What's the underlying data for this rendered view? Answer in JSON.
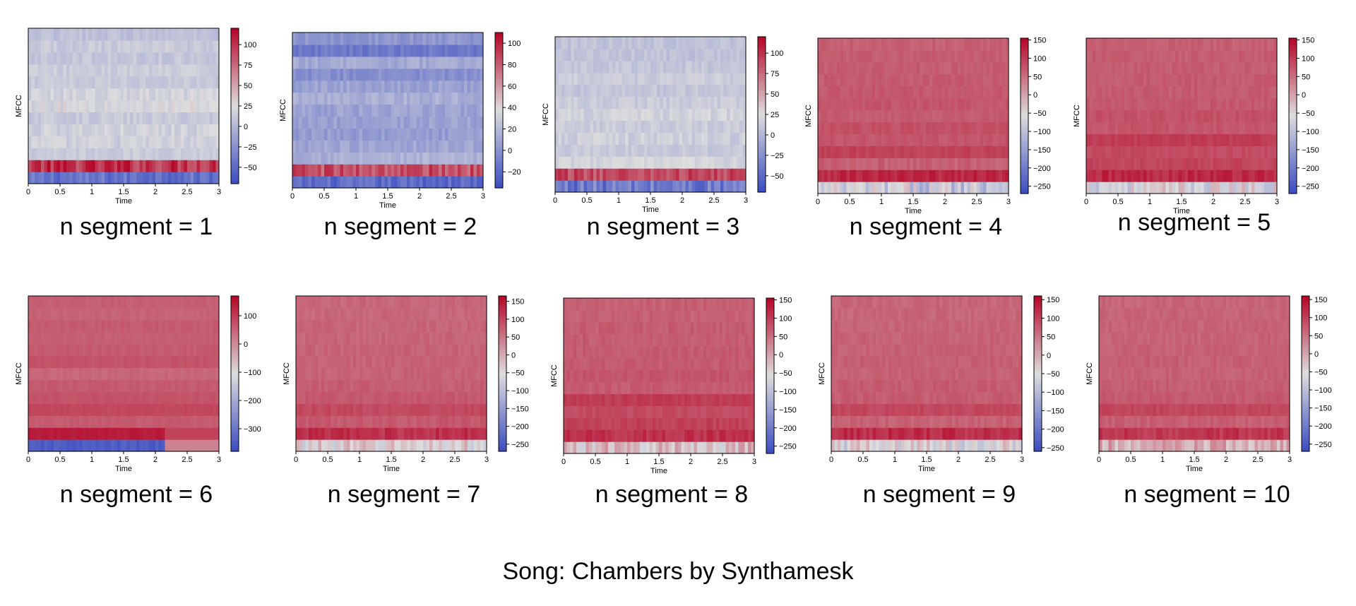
{
  "footer": {
    "text": "Song: Chambers by Synthamesk"
  },
  "colormap": {
    "low": "#3b4cc0",
    "mid": "#dddddd",
    "high": "#b40426"
  },
  "chart_data": [
    {
      "type": "heatmap",
      "caption": "n segment = 1",
      "xlabel": "Time",
      "ylabel": "MFCC",
      "xlim": [
        0,
        3
      ],
      "x_ticks": [
        "0",
        "0.5",
        "1",
        "1.5",
        "2",
        "2.5",
        "3"
      ],
      "n_coeffs": 13,
      "n_frames": 60,
      "clim": [
        -70,
        120
      ],
      "colorbar_ticks": [
        100,
        75,
        50,
        25,
        0,
        -25,
        -50
      ],
      "colorbar_labels": [
        "100",
        "75",
        "50",
        "25",
        "0",
        "−25",
        "−50"
      ],
      "profile": [
        -45,
        100,
        14,
        16,
        17,
        12,
        22,
        18,
        12,
        14,
        10,
        12,
        6
      ],
      "row_noise": [
        14,
        20,
        6,
        8,
        8,
        6,
        10,
        8,
        6,
        6,
        6,
        6,
        6
      ]
    },
    {
      "type": "heatmap",
      "caption": "n segment = 2",
      "xlabel": "Time",
      "ylabel": "MFCC",
      "xlim": [
        0,
        3
      ],
      "x_ticks": [
        "0",
        "0.5",
        "1",
        "1.5",
        "2",
        "2.5",
        "3"
      ],
      "n_coeffs": 13,
      "n_frames": 60,
      "clim": [
        -35,
        110
      ],
      "colorbar_ticks": [
        100,
        80,
        60,
        40,
        20,
        0,
        -20
      ],
      "colorbar_labels": [
        "100",
        "80",
        "60",
        "40",
        "20",
        "0",
        "−20"
      ],
      "profile": [
        -20,
        85,
        15,
        10,
        5,
        8,
        8,
        15,
        8,
        -2,
        12,
        -12,
        2
      ],
      "row_noise": [
        10,
        14,
        6,
        6,
        6,
        6,
        6,
        6,
        6,
        6,
        6,
        6,
        6
      ]
    },
    {
      "type": "heatmap",
      "caption": "n segment = 3",
      "xlabel": "Time",
      "ylabel": "MFCC",
      "xlim": [
        0,
        3
      ],
      "x_ticks": [
        "0",
        "0.5",
        "1",
        "1.5",
        "2",
        "2.5",
        "3"
      ],
      "n_coeffs": 13,
      "n_frames": 60,
      "clim": [
        -70,
        120
      ],
      "colorbar_ticks": [
        100,
        75,
        50,
        25,
        0,
        -25,
        -50
      ],
      "colorbar_labels": [
        "100",
        "75",
        "50",
        "25",
        "0",
        "−25",
        "−50"
      ],
      "profile": [
        -40,
        90,
        20,
        12,
        16,
        14,
        18,
        14,
        10,
        14,
        10,
        8,
        8
      ],
      "row_noise": [
        22,
        16,
        8,
        6,
        8,
        6,
        8,
        6,
        6,
        6,
        6,
        6,
        6
      ]
    },
    {
      "type": "heatmap",
      "caption": "n segment = 4",
      "xlabel": "Time",
      "ylabel": "MFCC",
      "xlim": [
        0,
        3
      ],
      "x_ticks": [
        "0",
        "0.5",
        "1",
        "1.5",
        "2",
        "2.5",
        "3"
      ],
      "n_coeffs": 13,
      "n_frames": 60,
      "clim": [
        -270,
        155
      ],
      "colorbar_ticks": [
        150,
        100,
        50,
        0,
        -50,
        -100,
        -150,
        -200,
        -250
      ],
      "colorbar_labels": [
        "150",
        "100",
        "50",
        "0",
        "−50",
        "−100",
        "−150",
        "−200",
        "−250"
      ],
      "profile": [
        -80,
        120,
        65,
        95,
        75,
        80,
        70,
        75,
        72,
        70,
        68,
        68,
        65
      ],
      "row_noise": [
        60,
        18,
        12,
        8,
        8,
        8,
        8,
        8,
        8,
        8,
        8,
        8,
        8
      ]
    },
    {
      "type": "heatmap",
      "caption": "n segment = 5",
      "xlabel": "Time",
      "ylabel": "MFCC",
      "xlim": [
        0,
        3
      ],
      "x_ticks": [
        "0",
        "0.5",
        "1",
        "1.5",
        "2",
        "2.5",
        "3"
      ],
      "n_coeffs": 13,
      "n_frames": 60,
      "clim": [
        -270,
        155
      ],
      "colorbar_ticks": [
        150,
        100,
        50,
        0,
        -50,
        -100,
        -150,
        -200,
        -250
      ],
      "colorbar_labels": [
        "150",
        "100",
        "50",
        "0",
        "−50",
        "−100",
        "−150",
        "−200",
        "−250"
      ],
      "profile": [
        -60,
        120,
        90,
        85,
        100,
        75,
        80,
        72,
        70,
        70,
        68,
        68,
        65
      ],
      "row_noise": [
        50,
        18,
        10,
        8,
        8,
        8,
        8,
        8,
        8,
        8,
        8,
        8,
        8
      ]
    },
    {
      "type": "heatmap",
      "caption": "n segment = 6",
      "xlabel": "Time",
      "ylabel": "MFCC",
      "xlim": [
        0,
        3
      ],
      "x_ticks": [
        "0",
        "0.5",
        "1",
        "1.5",
        "2",
        "2.5",
        "3"
      ],
      "n_coeffs": 13,
      "n_frames": 60,
      "clim": [
        -380,
        170
      ],
      "colorbar_ticks": [
        100,
        0,
        -100,
        -200,
        -300
      ],
      "colorbar_labels": [
        "100",
        "0",
        "−100",
        "−200",
        "−300"
      ],
      "profile": [
        -350,
        140,
        60,
        85,
        70,
        60,
        45,
        70,
        60,
        55,
        60,
        50,
        55
      ],
      "row_noise": [
        15,
        8,
        6,
        6,
        6,
        6,
        6,
        6,
        6,
        6,
        6,
        6,
        6
      ]
    },
    {
      "type": "heatmap",
      "caption": "n segment = 7",
      "xlabel": "Time",
      "ylabel": "MFCC",
      "xlim": [
        0,
        3
      ],
      "x_ticks": [
        "0",
        "0.5",
        "1",
        "1.5",
        "2",
        "2.5",
        "3"
      ],
      "n_coeffs": 13,
      "n_frames": 60,
      "clim": [
        -270,
        165
      ],
      "colorbar_ticks": [
        150,
        100,
        50,
        0,
        -50,
        -100,
        -150,
        -200,
        -250
      ],
      "colorbar_labels": [
        "150",
        "100",
        "50",
        "0",
        "−50",
        "−100",
        "−150",
        "−200",
        "−250"
      ],
      "profile": [
        -40,
        120,
        80,
        95,
        80,
        75,
        70,
        70,
        70,
        68,
        68,
        65,
        65
      ],
      "row_noise": [
        45,
        18,
        10,
        8,
        8,
        8,
        8,
        8,
        8,
        8,
        8,
        8,
        8
      ]
    },
    {
      "type": "heatmap",
      "caption": "n segment = 8",
      "xlabel": "Time",
      "ylabel": "MFCC",
      "xlim": [
        0,
        3
      ],
      "x_ticks": [
        "0",
        "0.5",
        "1",
        "1.5",
        "2",
        "2.5",
        "3"
      ],
      "n_coeffs": 13,
      "n_frames": 60,
      "clim": [
        -270,
        155
      ],
      "colorbar_ticks": [
        150,
        100,
        50,
        0,
        -50,
        -100,
        -150,
        -200,
        -250
      ],
      "colorbar_labels": [
        "150",
        "100",
        "50",
        "0",
        "−50",
        "−100",
        "−150",
        "−200",
        "−250"
      ],
      "profile": [
        -30,
        110,
        95,
        85,
        100,
        70,
        75,
        70,
        70,
        68,
        68,
        65,
        65
      ],
      "row_noise": [
        50,
        18,
        10,
        8,
        8,
        8,
        8,
        8,
        8,
        8,
        8,
        8,
        8
      ]
    },
    {
      "type": "heatmap",
      "caption": "n segment = 9",
      "xlabel": "Time",
      "ylabel": "MFCC",
      "xlim": [
        0,
        3
      ],
      "x_ticks": [
        "0",
        "0.5",
        "1",
        "1.5",
        "2",
        "2.5",
        "3"
      ],
      "n_coeffs": 13,
      "n_frames": 60,
      "clim": [
        -260,
        160
      ],
      "colorbar_ticks": [
        150,
        100,
        50,
        0,
        -50,
        -100,
        -150,
        -200,
        -250
      ],
      "colorbar_labels": [
        "150",
        "100",
        "50",
        "0",
        "−50",
        "−100",
        "−150",
        "−200",
        "−250"
      ],
      "profile": [
        -50,
        120,
        70,
        95,
        75,
        75,
        70,
        72,
        70,
        68,
        68,
        65,
        65
      ],
      "row_noise": [
        50,
        18,
        10,
        8,
        8,
        8,
        8,
        8,
        8,
        8,
        8,
        8,
        8
      ]
    },
    {
      "type": "heatmap",
      "caption": "n segment = 10",
      "xlabel": "Time",
      "ylabel": "MFCC",
      "xlim": [
        0,
        3
      ],
      "x_ticks": [
        "0",
        "0.5",
        "1",
        "1.5",
        "2",
        "2.5",
        "3"
      ],
      "n_coeffs": 13,
      "n_frames": 60,
      "clim": [
        -270,
        160
      ],
      "colorbar_ticks": [
        150,
        100,
        50,
        0,
        -50,
        -100,
        -150,
        -200,
        -250
      ],
      "colorbar_labels": [
        "150",
        "100",
        "50",
        "0",
        "−50",
        "−100",
        "−150",
        "−200",
        "−250"
      ],
      "profile": [
        -10,
        110,
        70,
        95,
        75,
        70,
        68,
        70,
        68,
        66,
        66,
        64,
        64
      ],
      "row_noise": [
        45,
        18,
        10,
        8,
        8,
        8,
        8,
        8,
        8,
        8,
        8,
        8,
        8
      ]
    }
  ]
}
